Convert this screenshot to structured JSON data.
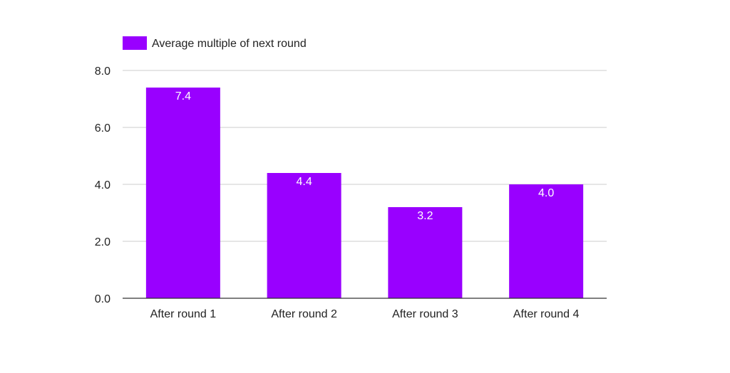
{
  "chart_data": {
    "type": "bar",
    "categories": [
      "After round 1",
      "After round 2",
      "After round 3",
      "After round 4"
    ],
    "series": [
      {
        "name": "Average multiple of next round",
        "values": [
          7.4,
          4.4,
          3.2,
          4.0
        ],
        "labels": [
          "7.4",
          "4.4",
          "3.2",
          "4.0"
        ],
        "color": "#9900ff"
      }
    ],
    "y_ticks": [
      0,
      2,
      4,
      6,
      8
    ],
    "y_tick_labels": [
      "0.0",
      "2.0",
      "4.0",
      "6.0",
      "8.0"
    ],
    "ylim": [
      0,
      8
    ],
    "grid": true,
    "legend_position": "top-left",
    "colors": {
      "bar": "#9900ff",
      "grid": "#cccccc",
      "axis": "#333333",
      "text": "#222222",
      "data_label": "#ffffff"
    }
  }
}
